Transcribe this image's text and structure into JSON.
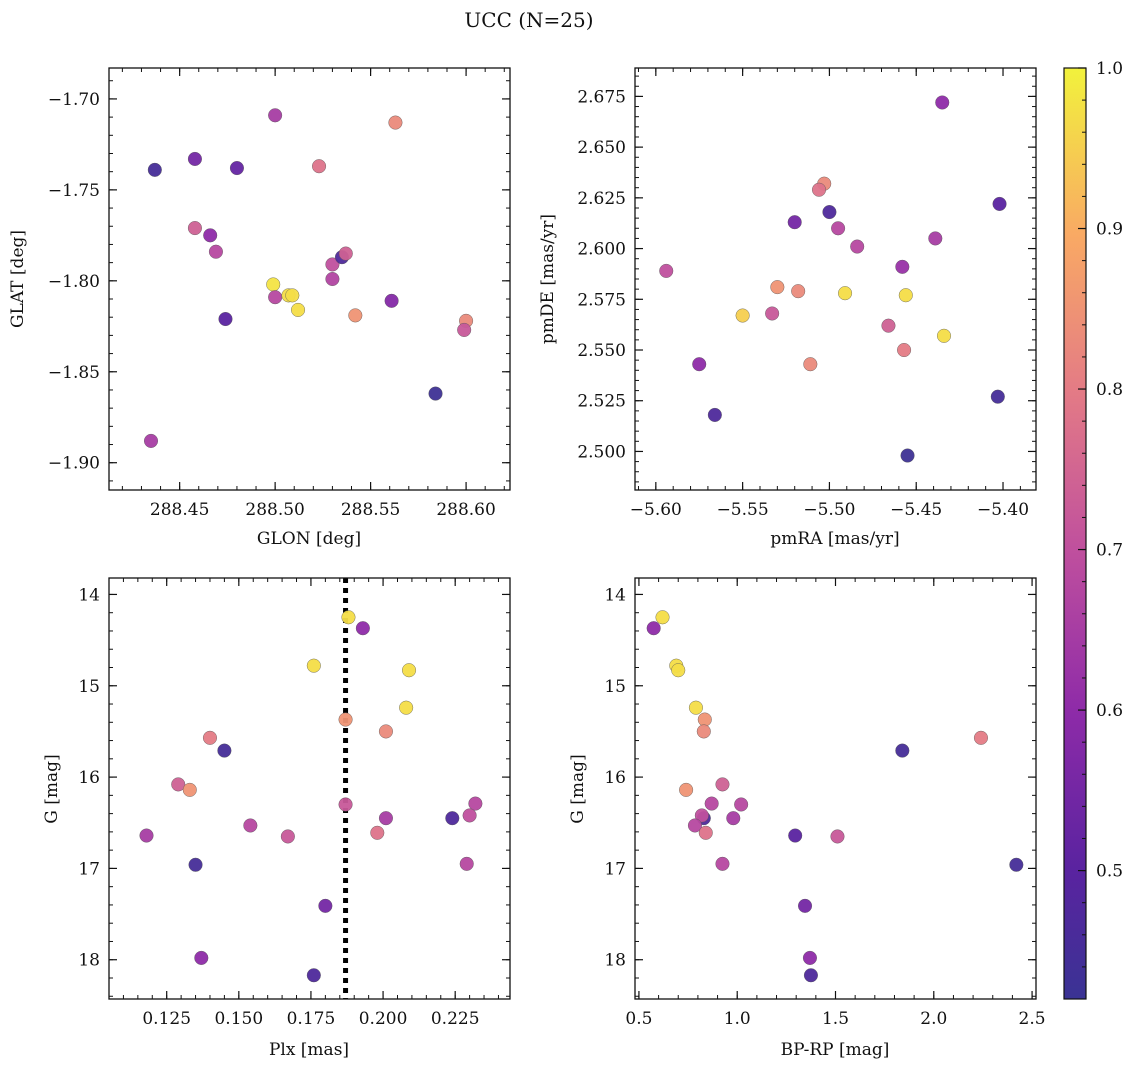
{
  "figure": {
    "title": "UCC (N=25)"
  },
  "colorbar": {
    "cmap": "plasma",
    "range": [
      0.42,
      1.0
    ],
    "ticks": [
      0.5,
      0.6,
      0.7,
      0.8,
      0.9,
      1.0
    ],
    "tick_labels": [
      "0.5",
      "0.6",
      "0.7",
      "0.8",
      "0.9",
      "1.0"
    ]
  },
  "chart_data": [
    {
      "type": "scatter",
      "xlabel": "GLON [deg]",
      "ylabel": "GLAT [deg]",
      "xlim": [
        288.413,
        288.623
      ],
      "ylim": [
        -1.915,
        -1.683
      ],
      "xticks": [
        288.45,
        288.5,
        288.55,
        288.6
      ],
      "xtick_labels": [
        "288.45",
        "288.50",
        "288.55",
        "288.60"
      ],
      "yticks": [
        -1.7,
        -1.75,
        -1.8,
        -1.85,
        -1.9
      ],
      "ytick_labels": [
        "−1.70",
        "−1.75",
        "−1.80",
        "−1.85",
        "−1.90"
      ],
      "points": [
        {
          "x": 288.437,
          "y": -1.739,
          "c": 0.45
        },
        {
          "x": 288.458,
          "y": -1.733,
          "c": 0.55
        },
        {
          "x": 288.48,
          "y": -1.738,
          "c": 0.52
        },
        {
          "x": 288.5,
          "y": -1.709,
          "c": 0.65
        },
        {
          "x": 288.523,
          "y": -1.737,
          "c": 0.78
        },
        {
          "x": 288.563,
          "y": -1.713,
          "c": 0.83
        },
        {
          "x": 288.458,
          "y": -1.771,
          "c": 0.74
        },
        {
          "x": 288.466,
          "y": -1.775,
          "c": 0.6
        },
        {
          "x": 288.469,
          "y": -1.784,
          "c": 0.68
        },
        {
          "x": 288.499,
          "y": -1.802,
          "c": 0.98
        },
        {
          "x": 288.5,
          "y": -1.809,
          "c": 0.68
        },
        {
          "x": 288.507,
          "y": -1.808,
          "c": 0.97
        },
        {
          "x": 288.509,
          "y": -1.808,
          "c": 0.97
        },
        {
          "x": 288.512,
          "y": -1.816,
          "c": 0.97
        },
        {
          "x": 288.474,
          "y": -1.821,
          "c": 0.5
        },
        {
          "x": 288.53,
          "y": -1.791,
          "c": 0.7
        },
        {
          "x": 288.53,
          "y": -1.799,
          "c": 0.67
        },
        {
          "x": 288.535,
          "y": -1.787,
          "c": 0.47
        },
        {
          "x": 288.537,
          "y": -1.785,
          "c": 0.74
        },
        {
          "x": 288.542,
          "y": -1.819,
          "c": 0.85
        },
        {
          "x": 288.561,
          "y": -1.811,
          "c": 0.58
        },
        {
          "x": 288.6,
          "y": -1.822,
          "c": 0.83
        },
        {
          "x": 288.599,
          "y": -1.827,
          "c": 0.72
        },
        {
          "x": 288.584,
          "y": -1.862,
          "c": 0.43
        },
        {
          "x": 288.435,
          "y": -1.888,
          "c": 0.65
        }
      ]
    },
    {
      "type": "scatter",
      "xlabel": "pmRA [mas/yr]",
      "ylabel": "pmDE [mas/yr]",
      "xlim": [
        -5.612,
        -5.381
      ],
      "ylim": [
        2.481,
        2.689
      ],
      "xticks": [
        -5.6,
        -5.55,
        -5.5,
        -5.45,
        -5.4
      ],
      "xtick_labels": [
        "−5.60",
        "−5.55",
        "−5.50",
        "−5.45",
        "−5.40"
      ],
      "yticks": [
        2.5,
        2.525,
        2.55,
        2.575,
        2.6,
        2.625,
        2.65,
        2.675
      ],
      "ytick_labels": [
        "2.500",
        "2.525",
        "2.550",
        "2.575",
        "2.600",
        "2.625",
        "2.650",
        "2.675"
      ],
      "points": [
        {
          "x": -5.435,
          "y": 2.672,
          "c": 0.6
        },
        {
          "x": -5.503,
          "y": 2.632,
          "c": 0.83
        },
        {
          "x": -5.506,
          "y": 2.629,
          "c": 0.78
        },
        {
          "x": -5.5,
          "y": 2.618,
          "c": 0.47
        },
        {
          "x": -5.402,
          "y": 2.622,
          "c": 0.5
        },
        {
          "x": -5.52,
          "y": 2.613,
          "c": 0.55
        },
        {
          "x": -5.495,
          "y": 2.61,
          "c": 0.68
        },
        {
          "x": -5.439,
          "y": 2.605,
          "c": 0.65
        },
        {
          "x": -5.484,
          "y": 2.601,
          "c": 0.68
        },
        {
          "x": -5.594,
          "y": 2.589,
          "c": 0.7
        },
        {
          "x": -5.458,
          "y": 2.591,
          "c": 0.62
        },
        {
          "x": -5.53,
          "y": 2.581,
          "c": 0.85
        },
        {
          "x": -5.518,
          "y": 2.579,
          "c": 0.83
        },
        {
          "x": -5.491,
          "y": 2.578,
          "c": 0.97
        },
        {
          "x": -5.456,
          "y": 2.577,
          "c": 0.97
        },
        {
          "x": -5.55,
          "y": 2.567,
          "c": 0.95
        },
        {
          "x": -5.533,
          "y": 2.568,
          "c": 0.72
        },
        {
          "x": -5.466,
          "y": 2.562,
          "c": 0.74
        },
        {
          "x": -5.434,
          "y": 2.557,
          "c": 0.97
        },
        {
          "x": -5.457,
          "y": 2.55,
          "c": 0.8
        },
        {
          "x": -5.575,
          "y": 2.543,
          "c": 0.6
        },
        {
          "x": -5.511,
          "y": 2.543,
          "c": 0.83
        },
        {
          "x": -5.566,
          "y": 2.518,
          "c": 0.47
        },
        {
          "x": -5.403,
          "y": 2.527,
          "c": 0.45
        },
        {
          "x": -5.455,
          "y": 2.498,
          "c": 0.43
        }
      ]
    },
    {
      "type": "scatter",
      "xlabel": "Plx [mas]",
      "ylabel": "G [mag]",
      "xlim": [
        0.105,
        0.244
      ],
      "ylim": [
        18.43,
        13.82
      ],
      "xticks": [
        0.125,
        0.15,
        0.175,
        0.2,
        0.225
      ],
      "xtick_labels": [
        "0.125",
        "0.150",
        "0.175",
        "0.200",
        "0.225"
      ],
      "yticks": [
        14,
        15,
        16,
        17,
        18
      ],
      "ytick_labels": [
        "14",
        "15",
        "16",
        "17",
        "18"
      ],
      "vline": {
        "x": 0.187,
        "style": "dotted"
      },
      "points": [
        {
          "x": 0.188,
          "y": 14.25,
          "c": 0.97
        },
        {
          "x": 0.193,
          "y": 14.37,
          "c": 0.6
        },
        {
          "x": 0.176,
          "y": 14.78,
          "c": 0.97
        },
        {
          "x": 0.209,
          "y": 14.83,
          "c": 0.97
        },
        {
          "x": 0.208,
          "y": 15.24,
          "c": 0.97
        },
        {
          "x": 0.187,
          "y": 15.37,
          "c": 0.85
        },
        {
          "x": 0.201,
          "y": 15.5,
          "c": 0.83
        },
        {
          "x": 0.14,
          "y": 15.57,
          "c": 0.8
        },
        {
          "x": 0.145,
          "y": 15.71,
          "c": 0.45
        },
        {
          "x": 0.129,
          "y": 16.08,
          "c": 0.74
        },
        {
          "x": 0.133,
          "y": 16.14,
          "c": 0.85
        },
        {
          "x": 0.187,
          "y": 16.3,
          "c": 0.72
        },
        {
          "x": 0.232,
          "y": 16.29,
          "c": 0.68
        },
        {
          "x": 0.23,
          "y": 16.42,
          "c": 0.7
        },
        {
          "x": 0.224,
          "y": 16.45,
          "c": 0.47
        },
        {
          "x": 0.201,
          "y": 16.45,
          "c": 0.65
        },
        {
          "x": 0.154,
          "y": 16.53,
          "c": 0.68
        },
        {
          "x": 0.198,
          "y": 16.61,
          "c": 0.78
        },
        {
          "x": 0.118,
          "y": 16.64,
          "c": 0.65
        },
        {
          "x": 0.167,
          "y": 16.65,
          "c": 0.72
        },
        {
          "x": 0.135,
          "y": 16.96,
          "c": 0.45
        },
        {
          "x": 0.229,
          "y": 16.95,
          "c": 0.68
        },
        {
          "x": 0.18,
          "y": 17.41,
          "c": 0.55
        },
        {
          "x": 0.137,
          "y": 17.98,
          "c": 0.6
        },
        {
          "x": 0.176,
          "y": 18.17,
          "c": 0.47
        }
      ]
    },
    {
      "type": "scatter",
      "xlabel": "BP-RP [mag]",
      "ylabel": "G [mag]",
      "xlim": [
        0.48,
        2.52
      ],
      "ylim": [
        18.43,
        13.82
      ],
      "xticks": [
        0.5,
        1.0,
        1.5,
        2.0,
        2.5
      ],
      "xtick_labels": [
        "0.5",
        "1.0",
        "1.5",
        "2.0",
        "2.5"
      ],
      "yticks": [
        14,
        15,
        16,
        17,
        18
      ],
      "ytick_labels": [
        "14",
        "15",
        "16",
        "17",
        "18"
      ],
      "points": [
        {
          "x": 0.62,
          "y": 14.25,
          "c": 0.97
        },
        {
          "x": 0.575,
          "y": 14.37,
          "c": 0.6
        },
        {
          "x": 0.69,
          "y": 14.78,
          "c": 0.97
        },
        {
          "x": 0.7,
          "y": 14.83,
          "c": 0.97
        },
        {
          "x": 0.79,
          "y": 15.24,
          "c": 0.97
        },
        {
          "x": 0.835,
          "y": 15.37,
          "c": 0.85
        },
        {
          "x": 0.83,
          "y": 15.5,
          "c": 0.83
        },
        {
          "x": 2.24,
          "y": 15.57,
          "c": 0.8
        },
        {
          "x": 1.84,
          "y": 15.71,
          "c": 0.45
        },
        {
          "x": 0.925,
          "y": 16.08,
          "c": 0.74
        },
        {
          "x": 0.74,
          "y": 16.14,
          "c": 0.85
        },
        {
          "x": 0.87,
          "y": 16.29,
          "c": 0.68
        },
        {
          "x": 1.02,
          "y": 16.3,
          "c": 0.68
        },
        {
          "x": 0.83,
          "y": 16.45,
          "c": 0.47
        },
        {
          "x": 0.82,
          "y": 16.42,
          "c": 0.7
        },
        {
          "x": 0.98,
          "y": 16.45,
          "c": 0.65
        },
        {
          "x": 0.785,
          "y": 16.53,
          "c": 0.68
        },
        {
          "x": 0.84,
          "y": 16.61,
          "c": 0.78
        },
        {
          "x": 1.295,
          "y": 16.64,
          "c": 0.5
        },
        {
          "x": 1.51,
          "y": 16.65,
          "c": 0.72
        },
        {
          "x": 0.925,
          "y": 16.95,
          "c": 0.68
        },
        {
          "x": 2.42,
          "y": 16.96,
          "c": 0.45
        },
        {
          "x": 1.345,
          "y": 17.41,
          "c": 0.55
        },
        {
          "x": 1.37,
          "y": 17.98,
          "c": 0.6
        },
        {
          "x": 1.375,
          "y": 18.17,
          "c": 0.47
        }
      ]
    }
  ]
}
